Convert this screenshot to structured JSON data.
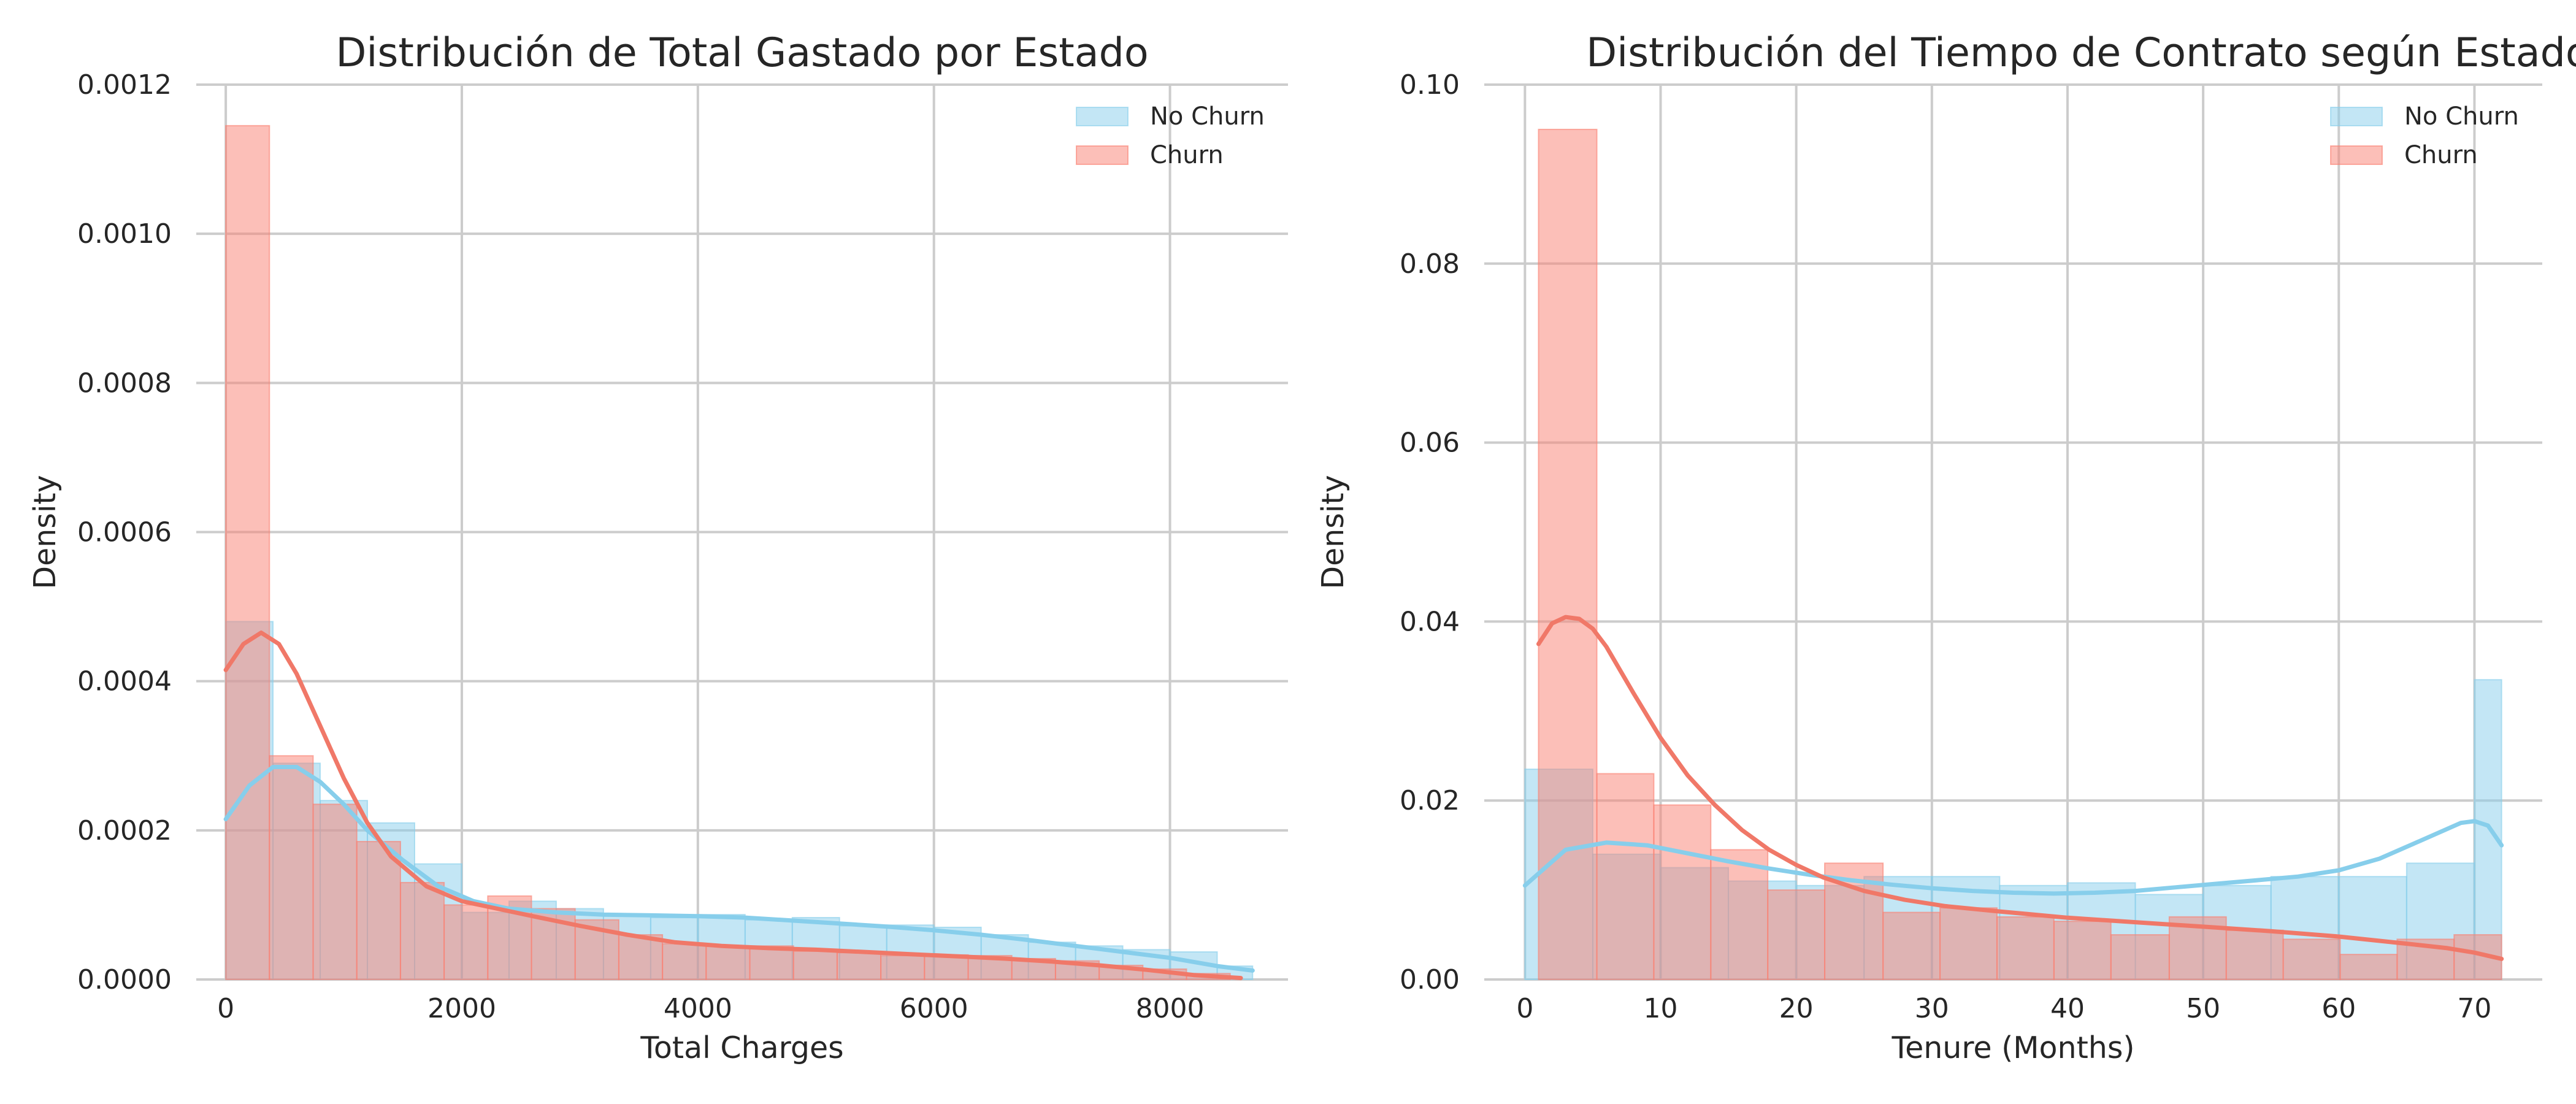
{
  "colors": {
    "no_churn_fill": "#87ceeb",
    "no_churn_line": "#87ceeb",
    "churn_fill": "#fa8072",
    "churn_line": "#f07868"
  },
  "chart_data": [
    {
      "type": "histogram",
      "title": "Distribución de Total Gastado por Estado",
      "xlabel": "Total Charges",
      "ylabel": "Density",
      "xlim": [
        -250,
        9000
      ],
      "ylim": [
        0,
        0.0012
      ],
      "xticks": [
        0,
        2000,
        4000,
        6000,
        8000
      ],
      "xtick_labels": [
        "0",
        "2000",
        "4000",
        "6000",
        "8000"
      ],
      "yticks": [
        0,
        0.0002,
        0.0004,
        0.0006,
        0.0008,
        0.001,
        0.0012
      ],
      "ytick_labels": [
        "0.0000",
        "0.0002",
        "0.0004",
        "0.0006",
        "0.0008",
        "0.0010",
        "0.0012"
      ],
      "grid": true,
      "legend_position": "top-right",
      "series": [
        {
          "name": "No Churn",
          "bin_edges": [
            0,
            400,
            800,
            1200,
            1600,
            2000,
            2400,
            2800,
            3200,
            3600,
            4000,
            4400,
            4800,
            5200,
            5600,
            6000,
            6400,
            6800,
            7200,
            7600,
            8000,
            8400,
            8700
          ],
          "density": [
            0.00048,
            0.00029,
            0.00024,
            0.00021,
            0.000155,
            9e-05,
            0.000105,
            9.5e-05,
            8.7e-05,
            8.3e-05,
            8.7e-05,
            8e-05,
            8.3e-05,
            7.2e-05,
            7.3e-05,
            7e-05,
            6e-05,
            5e-05,
            4.5e-05,
            4e-05,
            3.7e-05,
            1.8e-05
          ],
          "kde": {
            "x": [
              0,
              200,
              400,
              600,
              800,
              1000,
              1200,
              1500,
              1800,
              2100,
              2400,
              2800,
              3200,
              3600,
              4000,
              4400,
              4800,
              5200,
              5600,
              6000,
              6400,
              6800,
              7200,
              7600,
              8000,
              8400,
              8700
            ],
            "y": [
              0.000215,
              0.00026,
              0.000285,
              0.000285,
              0.000265,
              0.000235,
              0.0002,
              0.00016,
              0.000125,
              0.000105,
              9.5e-05,
              9e-05,
              8.7e-05,
              8.6e-05,
              8.5e-05,
              8.3e-05,
              7.9e-05,
              7.5e-05,
              7.1e-05,
              6.6e-05,
              6e-05,
              5.3e-05,
              4.5e-05,
              3.7e-05,
              2.9e-05,
              1.8e-05,
              1.2e-05
            ]
          }
        },
        {
          "name": "Churn",
          "bin_edges": [
            0,
            370,
            740,
            1110,
            1480,
            1850,
            2220,
            2590,
            2960,
            3330,
            3700,
            4070,
            4440,
            4810,
            5180,
            5550,
            5920,
            6290,
            6660,
            7030,
            7400,
            7770,
            8140,
            8510
          ],
          "density": [
            0.001145,
            0.0003,
            0.000235,
            0.000185,
            0.00013,
            0.0001,
            0.000112,
            9.5e-05,
            8e-05,
            6e-05,
            4.8e-05,
            4.5e-05,
            4.5e-05,
            3.8e-05,
            3.6e-05,
            3.2e-05,
            3.3e-05,
            3.2e-05,
            2.8e-05,
            2.5e-05,
            1.9e-05,
            1.4e-05,
            8e-06
          ],
          "kde": {
            "x": [
              0,
              150,
              300,
              450,
              600,
              800,
              1000,
              1200,
              1400,
              1700,
              2000,
              2300,
              2600,
              3000,
              3400,
              3800,
              4200,
              4600,
              5000,
              5400,
              5800,
              6200,
              6600,
              7000,
              7400,
              7800,
              8200,
              8600
            ],
            "y": [
              0.000415,
              0.00045,
              0.000465,
              0.00045,
              0.00041,
              0.00034,
              0.00027,
              0.00021,
              0.000165,
              0.000125,
              0.000105,
              9.5e-05,
              8.5e-05,
              7.2e-05,
              6e-05,
              5e-05,
              4.5e-05,
              4.2e-05,
              4e-05,
              3.7e-05,
              3.4e-05,
              3.1e-05,
              2.8e-05,
              2.4e-05,
              1.9e-05,
              1.3e-05,
              6e-06,
              2e-06
            ]
          }
        }
      ]
    },
    {
      "type": "histogram",
      "title": "Distribución del Tiempo de Contrato según Estado de Abandono",
      "xlabel": "Tenure (Months)",
      "ylabel": "Density",
      "xlim": [
        -3,
        75
      ],
      "ylim": [
        0,
        0.1
      ],
      "xticks": [
        0,
        10,
        20,
        30,
        40,
        50,
        60,
        70
      ],
      "xtick_labels": [
        "0",
        "10",
        "20",
        "30",
        "40",
        "50",
        "60",
        "70"
      ],
      "yticks": [
        0,
        0.02,
        0.04,
        0.06,
        0.08,
        0.1
      ],
      "ytick_labels": [
        "0.00",
        "0.02",
        "0.04",
        "0.06",
        "0.08",
        "0.10"
      ],
      "grid": true,
      "legend_position": "top-right",
      "series": [
        {
          "name": "No Churn",
          "bin_edges": [
            0,
            5,
            10,
            15,
            20,
            25,
            30,
            35,
            40,
            45,
            50,
            55,
            60,
            65,
            70,
            72
          ],
          "density": [
            0.0235,
            0.014,
            0.0125,
            0.011,
            0.0105,
            0.0115,
            0.0115,
            0.0105,
            0.0108,
            0.0095,
            0.0105,
            0.0115,
            0.0115,
            0.013,
            0.0335
          ],
          "kde": {
            "x": [
              0,
              3,
              6,
              9,
              12,
              15,
              18,
              21,
              24,
              27,
              30,
              33,
              36,
              39,
              42,
              45,
              48,
              51,
              54,
              57,
              60,
              63,
              66,
              69,
              70,
              71,
              72
            ],
            "y": [
              0.0105,
              0.0145,
              0.0153,
              0.015,
              0.0141,
              0.0132,
              0.0124,
              0.0117,
              0.0111,
              0.0106,
              0.0102,
              0.0099,
              0.0097,
              0.0096,
              0.0097,
              0.0099,
              0.0103,
              0.0107,
              0.0111,
              0.0115,
              0.0122,
              0.0135,
              0.0155,
              0.0175,
              0.0177,
              0.0172,
              0.015
            ]
          }
        },
        {
          "name": "Churn",
          "bin_edges": [
            1,
            5.3,
            9.5,
            13.7,
            17.9,
            22.1,
            26.4,
            30.6,
            34.8,
            39,
            43.2,
            47.5,
            51.7,
            55.9,
            60.1,
            64.3,
            68.5,
            72
          ],
          "density": [
            0.095,
            0.023,
            0.0195,
            0.0145,
            0.01,
            0.013,
            0.0075,
            0.008,
            0.007,
            0.0065,
            0.005,
            0.007,
            0.0055,
            0.0045,
            0.0028,
            0.0045,
            0.005
          ],
          "kde": {
            "x": [
              1,
              2,
              3,
              4,
              5,
              6,
              8,
              10,
              12,
              14,
              16,
              18,
              20,
              22,
              25,
              28,
              31,
              35,
              40,
              45,
              50,
              55,
              60,
              65,
              68,
              70,
              72
            ],
            "y": [
              0.0375,
              0.0398,
              0.0405,
              0.0403,
              0.0392,
              0.0372,
              0.032,
              0.027,
              0.0228,
              0.0195,
              0.0167,
              0.0145,
              0.0128,
              0.0114,
              0.0099,
              0.0089,
              0.0082,
              0.0076,
              0.0069,
              0.0064,
              0.0059,
              0.0054,
              0.0048,
              0.004,
              0.0035,
              0.003,
              0.0023
            ]
          }
        }
      ]
    }
  ]
}
